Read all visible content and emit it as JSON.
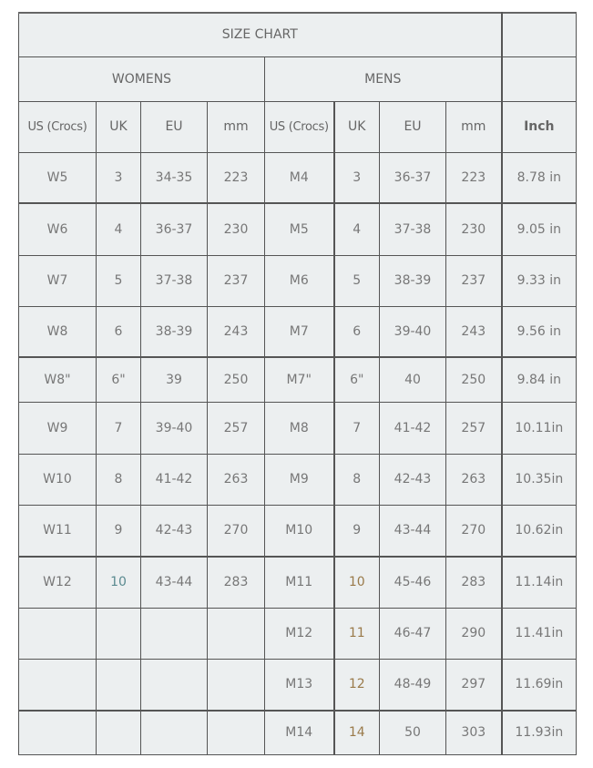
{
  "title": "SIZE CHART",
  "groups": {
    "womens": "WOMENS",
    "mens": "MENS"
  },
  "columns": [
    "US (Crocs)",
    "UK",
    "EU",
    "mm",
    "US (Crocs)",
    "UK",
    "EU",
    "mm",
    "Inch"
  ],
  "rows": [
    [
      "W5",
      "3",
      "34-35",
      "223",
      "M4",
      "3",
      "36-37",
      "223",
      "8.78 in"
    ],
    [
      "W6",
      "4",
      "36-37",
      "230",
      "M5",
      "4",
      "37-38",
      "230",
      "9.05 in"
    ],
    [
      "W7",
      "5",
      "37-38",
      "237",
      "M6",
      "5",
      "38-39",
      "237",
      "9.33 in"
    ],
    [
      "W8",
      "6",
      "38-39",
      "243",
      "M7",
      "6",
      "39-40",
      "243",
      "9.56 in"
    ],
    [
      "W8\"",
      "6\"",
      "39",
      "250",
      "M7\"",
      "6\"",
      "40",
      "250",
      "9.84 in"
    ],
    [
      "W9",
      "7",
      "39-40",
      "257",
      "M8",
      "7",
      "41-42",
      "257",
      "10.11in"
    ],
    [
      "W10",
      "8",
      "41-42",
      "263",
      "M9",
      "8",
      "42-43",
      "263",
      "10.35in"
    ],
    [
      "W11",
      "9",
      "42-43",
      "270",
      "M10",
      "9",
      "43-44",
      "270",
      "10.62in"
    ],
    [
      "W12",
      "10",
      "43-44",
      "283",
      "M11",
      "10",
      "45-46",
      "283",
      "11.14in"
    ],
    [
      "",
      "",
      "",
      "",
      "M12",
      "11",
      "46-47",
      "290",
      "11.41in"
    ],
    [
      "",
      "",
      "",
      "",
      "M13",
      "12",
      "48-49",
      "297",
      "11.69in"
    ],
    [
      "",
      "",
      "",
      "",
      "M14",
      "14",
      "50",
      "303",
      "11.93in"
    ]
  ],
  "colors": {
    "background": "#eceff0",
    "border": "#555555",
    "text": "#777777"
  }
}
